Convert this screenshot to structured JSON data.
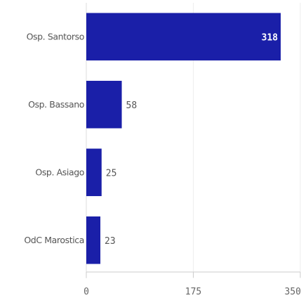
{
  "chart_data": {
    "type": "bar",
    "orientation": "horizontal",
    "categories": [
      "Osp. Santorso",
      "Osp. Bassano",
      "Osp. Asiago",
      "OdC Marostica"
    ],
    "values": [
      318,
      58,
      25,
      23
    ],
    "xlim": [
      0,
      350
    ],
    "xticks": [
      0,
      175,
      350
    ],
    "x_tick_labels": [
      "0",
      "175",
      "350"
    ],
    "grid": true,
    "bar_color": "#1a1fa8",
    "title": "",
    "xlabel": "",
    "ylabel": ""
  }
}
